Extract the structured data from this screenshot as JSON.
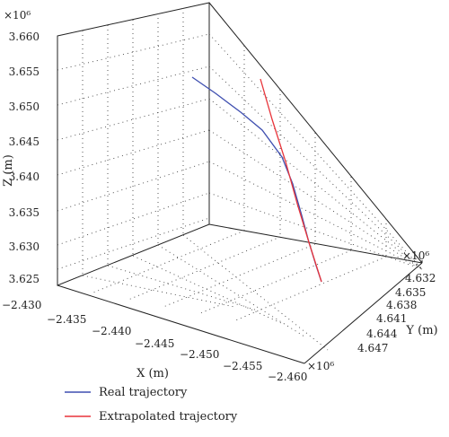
{
  "chart_data": {
    "type": "line",
    "projection": "3d",
    "xlabel": "X (m)",
    "ylabel": "Y (m)",
    "zlabel": "Z (m)",
    "x_multiplier": "×10⁶",
    "y_multiplier": "×10⁶",
    "z_multiplier": "×10⁶",
    "xlim": [
      -2.46,
      -2.43
    ],
    "ylim": [
      4.632,
      4.647
    ],
    "zlim": [
      3.625,
      3.66
    ],
    "x_ticks": [
      "−2.435",
      "−2.440",
      "−2.445",
      "−2.450",
      "−2.455",
      "−2.460"
    ],
    "y_ticks": [
      "4.632",
      "4.635",
      "4.638",
      "4.641",
      "4.644",
      "4.647"
    ],
    "z_ticks": [
      "3.660",
      "3.655",
      "3.650",
      "3.645",
      "3.640",
      "3.635",
      "3.630",
      "3.625"
    ],
    "x_corner_tick": "−2.430",
    "grid": true,
    "legend_position": "bottom-left",
    "series": [
      {
        "name": "Real trajectory",
        "color": "#3f4fb0"
      },
      {
        "name": "Extrapolated trajectory",
        "color": "#e8343a"
      }
    ]
  }
}
